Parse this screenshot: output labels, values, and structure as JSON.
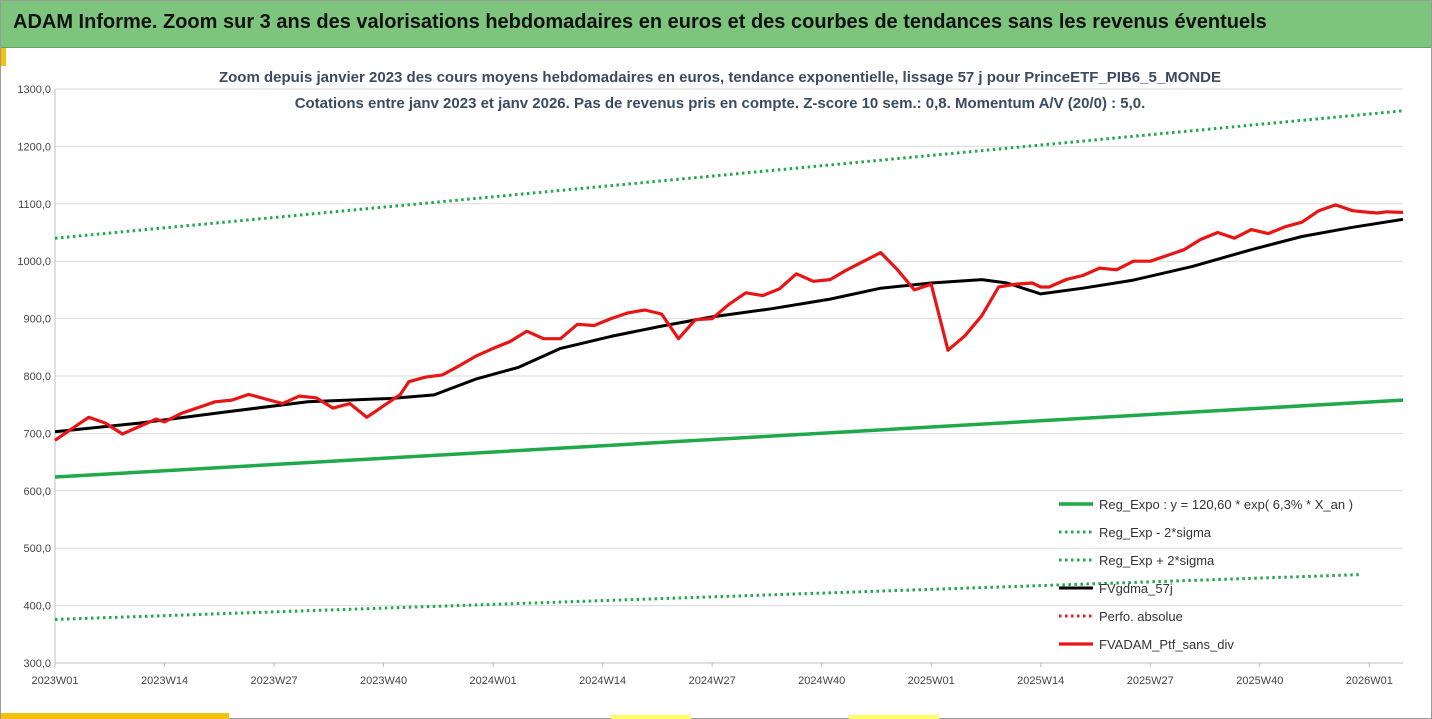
{
  "banner": {
    "title": "ADAM Informe. Zoom sur 3 ans des valorisations hebdomadaires en euros et des courbes de tendances sans les revenus éventuels"
  },
  "chart_data": {
    "type": "line",
    "title": "Zoom depuis janvier 2023 des cours moyens hebdomadaires  en euros, tendance exponentielle, lissage 57 j pour PrinceETF_PIB6_5_MONDE",
    "subtitle": "Cotations entre janv 2023 et janv 2026. Pas de revenus pris en compte. Z-score 10 sem.: 0,8. Momentum A/V (20/0) : 5,0.",
    "xlabel": "",
    "ylabel": "",
    "ylim": [
      300,
      1300
    ],
    "x_range_weeks": [
      0,
      160
    ],
    "y_ticks": [
      "300,0",
      "400,0",
      "500,0",
      "600,0",
      "700,0",
      "800,0",
      "900,0",
      "1000,0",
      "1100,0",
      "1200,0",
      "1300,0"
    ],
    "y_tick_values": [
      300,
      400,
      500,
      600,
      700,
      800,
      900,
      1000,
      1100,
      1200,
      1300
    ],
    "x_ticks": [
      "2023W01",
      "2023W14",
      "2023W27",
      "2023W40",
      "2024W01",
      "2024W14",
      "2024W27",
      "2024W40",
      "2025W01",
      "2025W14",
      "2025W27",
      "2025W40",
      "2026W01"
    ],
    "x_tick_weeks": [
      0,
      13,
      26,
      39,
      52,
      65,
      78,
      91,
      104,
      117,
      130,
      143,
      156
    ],
    "grid": "horizontal",
    "legend_position": "bottom-right",
    "series": [
      {
        "name": "Reg_Expo : y = 120,60 * exp( 6,3% *  X_an )",
        "style": "solid",
        "color": "#1fa94a",
        "x": [
          0,
          160
        ],
        "values": [
          624,
          758
        ]
      },
      {
        "name": "Reg_Exp - 2*sigma",
        "style": "dotted",
        "color": "#1fa94a",
        "x": [
          0,
          155
        ],
        "values": [
          376,
          454
        ]
      },
      {
        "name": "Reg_Exp + 2*sigma",
        "style": "dotted",
        "color": "#1fa94a",
        "x": [
          0,
          160
        ],
        "values": [
          1040,
          1262
        ]
      },
      {
        "name": "FVgdma_57j",
        "style": "solid",
        "color": "#000000",
        "x": [
          0,
          10,
          20,
          30,
          40,
          45,
          50,
          55,
          60,
          66,
          72,
          78,
          85,
          92,
          98,
          104,
          110,
          113,
          117,
          122,
          128,
          135,
          142,
          148,
          154,
          160
        ],
        "values": [
          703,
          718,
          737,
          755,
          761,
          767,
          795,
          815,
          848,
          869,
          887,
          903,
          917,
          934,
          953,
          962,
          968,
          962,
          943,
          953,
          967,
          991,
          1020,
          1043,
          1059,
          1073
        ]
      },
      {
        "name": "Perfo. absolue",
        "style": "dotted",
        "color": "#e02020",
        "x": [],
        "values": []
      },
      {
        "name": "FVADAM_Ptf_sans_div",
        "style": "solid",
        "color": "#e81515",
        "x": [
          0,
          2,
          4,
          6,
          8,
          10,
          12,
          13,
          15,
          17,
          19,
          21,
          23,
          25,
          27,
          29,
          31,
          33,
          35,
          37,
          39,
          41,
          42,
          44,
          46,
          48,
          50,
          52,
          54,
          56,
          58,
          60,
          62,
          64,
          66,
          68,
          70,
          72,
          74,
          76,
          78,
          80,
          82,
          84,
          86,
          88,
          90,
          92,
          94,
          96,
          98,
          100,
          102,
          104,
          106,
          108,
          110,
          112,
          114,
          116,
          117,
          118,
          120,
          122,
          124,
          126,
          128,
          130,
          132,
          134,
          136,
          138,
          140,
          142,
          144,
          146,
          148,
          150,
          152,
          154,
          156,
          157,
          158,
          160
        ],
        "values": [
          688,
          708,
          728,
          718,
          699,
          712,
          725,
          720,
          735,
          745,
          755,
          758,
          768,
          760,
          752,
          765,
          762,
          744,
          752,
          728,
          748,
          768,
          790,
          798,
          802,
          818,
          835,
          848,
          860,
          878,
          865,
          865,
          890,
          888,
          900,
          910,
          915,
          908,
          865,
          898,
          900,
          925,
          945,
          940,
          952,
          978,
          965,
          968,
          985,
          1000,
          1015,
          985,
          950,
          960,
          845,
          870,
          905,
          955,
          960,
          962,
          955,
          955,
          968,
          975,
          988,
          985,
          1000,
          1000,
          1010,
          1020,
          1038,
          1050,
          1040,
          1055,
          1048,
          1060,
          1068,
          1088,
          1098,
          1088,
          1085,
          1084,
          1086,
          1085
        ]
      }
    ]
  }
}
